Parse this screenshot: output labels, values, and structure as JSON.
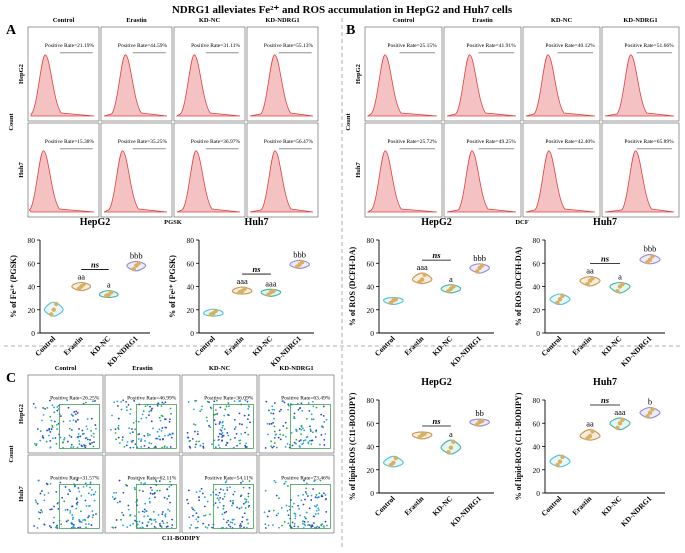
{
  "figure": {
    "title": "NDRG1 alleviates Fe²⁺ and ROS accumulation in HepG2 and Huh7 cells"
  },
  "panels": [
    {
      "letter": "A",
      "conditions": [
        "Control",
        "Erastin",
        "KD-NC",
        "KD-NDRG1"
      ],
      "rows": [
        "HepG2",
        "Huh7"
      ],
      "xlabel": "PGSK",
      "ylabel": "Count",
      "rates": [
        [
          "Positive Rate=21.19%",
          "Positive Rate=44.59%",
          "Positive Rate=31.11%",
          "Positive Rate=55.13%"
        ],
        [
          "Positive Rate=15.38%",
          "Positive Rate=35.25%",
          "Positive Rate=36.97%",
          "Positive Rate=56.47%"
        ]
      ]
    },
    {
      "letter": "B",
      "conditions": [
        "Control",
        "Erastin",
        "KD-NC",
        "KD-NDRG1"
      ],
      "rows": [
        "HepG2",
        "Huh7"
      ],
      "xlabel": "DCF",
      "ylabel": "Count",
      "rates": [
        [
          "Positive Rate=25.15%",
          "Positive Rate=41.91%",
          "Positive Rate=40.12%",
          "Positive Rate=51.66%"
        ],
        [
          "Positive Rate=25.72%",
          "Positive Rate=49.25%",
          "Positive Rate=42.40%",
          "Positive Rate=65.89%"
        ]
      ]
    },
    {
      "letter": "C",
      "conditions": [
        "Control",
        "Erastin",
        "KD-NC",
        "KD-NDRG1"
      ],
      "rows": [
        "HepG2",
        "Huh7"
      ],
      "xlabel": "C11-BODIPY",
      "ylabel": "Count",
      "rates": [
        [
          "Positive Rate=26.25%",
          "Positive Rate=46.99%",
          "Positive Rate=36.09%",
          "Positive Rate=63.49%"
        ],
        [
          "Positive Rate=31.57%",
          "Positive Rate=62.11%",
          "Positive Rate=54.11%",
          "Positive Rate=73.46%"
        ]
      ]
    }
  ],
  "chart_data": [
    {
      "type": "violin",
      "panel": "A",
      "title": "HepG2",
      "ylabel": "% of Fe²⁺ (PGSK)",
      "categories": [
        "Control",
        "Erastin",
        "KD-NC",
        "KD-NDRG1"
      ],
      "ylim": [
        0,
        80
      ],
      "yticks": [
        0,
        20,
        40,
        60,
        80
      ],
      "points": [
        [
          16,
          20,
          25
        ],
        [
          38,
          40,
          42
        ],
        [
          32,
          33,
          35
        ],
        [
          55,
          58,
          60
        ]
      ],
      "labels": [
        "",
        "aa",
        "a",
        "bbb"
      ],
      "bracket": "ns"
    },
    {
      "type": "violin",
      "panel": "A",
      "title": "Huh7",
      "ylabel": "% of Fe²⁺ (PGSK)",
      "categories": [
        "Control",
        "Erastin",
        "KD-NC",
        "KD-NDRG1"
      ],
      "ylim": [
        0,
        80
      ],
      "yticks": [
        0,
        20,
        40,
        60,
        80
      ],
      "points": [
        [
          16,
          17,
          19
        ],
        [
          35,
          36,
          38
        ],
        [
          33,
          35,
          36
        ],
        [
          57,
          59,
          61
        ]
      ],
      "labels": [
        "",
        "aaa",
        "aaa",
        "bbb"
      ],
      "bracket": "ns"
    },
    {
      "type": "violin",
      "panel": "B",
      "title": "HepG2",
      "ylabel": "% of ROS (DCFH-DA)",
      "categories": [
        "Control",
        "Erastin",
        "KD-NC",
        "KD-NDRG1"
      ],
      "ylim": [
        0,
        80
      ],
      "yticks": [
        0,
        20,
        40,
        60,
        80
      ],
      "points": [
        [
          26,
          28,
          29
        ],
        [
          44,
          46,
          50
        ],
        [
          36,
          38,
          40
        ],
        [
          53,
          56,
          58
        ]
      ],
      "labels": [
        "",
        "aaa",
        "a",
        "bbb"
      ],
      "bracket": "ns"
    },
    {
      "type": "violin",
      "panel": "B",
      "title": "Huh7",
      "ylabel": "% of ROS (DCFH-DA)",
      "categories": [
        "Control",
        "Erastin",
        "KD-NC",
        "KD-NDRG1"
      ],
      "ylim": [
        0,
        80
      ],
      "yticks": [
        0,
        20,
        40,
        60,
        80
      ],
      "points": [
        [
          26,
          29,
          32
        ],
        [
          42,
          45,
          47
        ],
        [
          36,
          40,
          42
        ],
        [
          61,
          63,
          66
        ]
      ],
      "labels": [
        "",
        "aa",
        "a",
        "bbb"
      ],
      "bracket": "ns"
    },
    {
      "type": "violin",
      "panel": "C",
      "title": "HepG2",
      "ylabel": "% of lipid-ROS (C11-BODIPY)",
      "categories": [
        "Control",
        "Erastin",
        "KD-NC",
        "KD-NDRG1"
      ],
      "ylim": [
        0,
        80
      ],
      "yticks": [
        0,
        20,
        40,
        60,
        80
      ],
      "points": [
        [
          24,
          26,
          30
        ],
        [
          48,
          50,
          51
        ],
        [
          35,
          39,
          44
        ],
        [
          59,
          61,
          62
        ]
      ],
      "labels": [
        "",
        "",
        "a",
        "bb"
      ],
      "bracket": "ns"
    },
    {
      "type": "violin",
      "panel": "C",
      "title": "Huh7",
      "ylabel": "% of lipid-ROS (C11-BODIPY)",
      "categories": [
        "Control",
        "Erastin",
        "KD-NC",
        "KD-NDRG1"
      ],
      "ylim": [
        0,
        80
      ],
      "yticks": [
        0,
        20,
        40,
        60,
        80
      ],
      "points": [
        [
          24,
          27,
          31
        ],
        [
          47,
          49,
          53
        ],
        [
          56,
          60,
          63
        ],
        [
          66,
          69,
          72
        ]
      ],
      "labels": [
        "",
        "aa",
        "aaa",
        "b"
      ],
      "bracket": "ns"
    }
  ]
}
